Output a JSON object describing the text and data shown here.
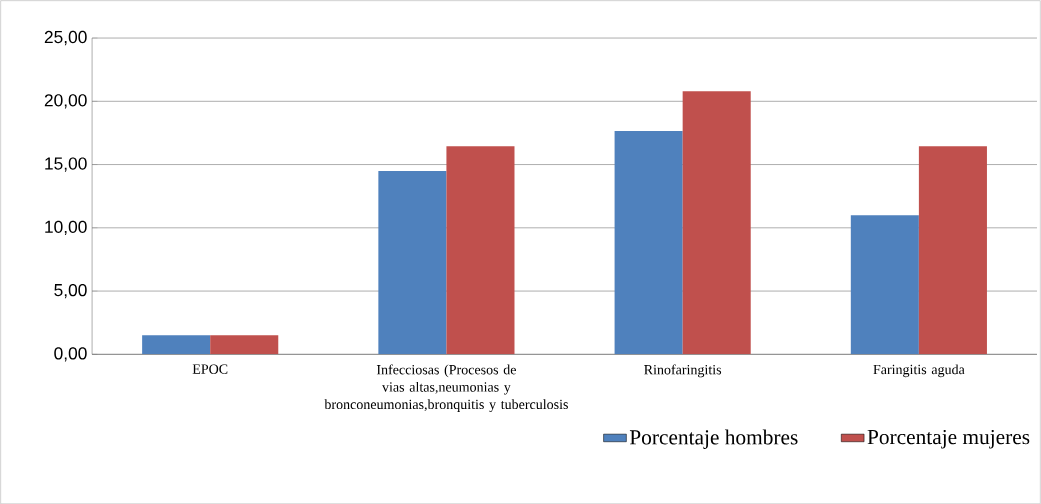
{
  "chart_data": {
    "type": "bar",
    "categories": [
      "EPOC",
      "Infecciosas (Procesos de vias altas,neumonias y bronconeumonias,bronquitis y tuberculosis",
      "Rinofaringitis",
      "Faringitis aguda"
    ],
    "series": [
      {
        "name": "Porcentaje hombres",
        "color": "#4f81bd",
        "values": [
          1.5,
          14.5,
          17.65,
          11.0
        ]
      },
      {
        "name": "Porcentaje mujeres",
        "color": "#c0504d",
        "values": [
          1.5,
          16.45,
          20.8,
          16.45
        ]
      }
    ],
    "ylim": [
      0,
      25
    ],
    "yticks": [
      {
        "value": 0,
        "label": "0,00"
      },
      {
        "value": 5,
        "label": "5,00"
      },
      {
        "value": 10,
        "label": "10,00"
      },
      {
        "value": 15,
        "label": "15,00"
      },
      {
        "value": 20,
        "label": "20,00"
      },
      {
        "value": 25,
        "label": "25,00"
      }
    ],
    "grid": "y",
    "legend": "bottom"
  }
}
